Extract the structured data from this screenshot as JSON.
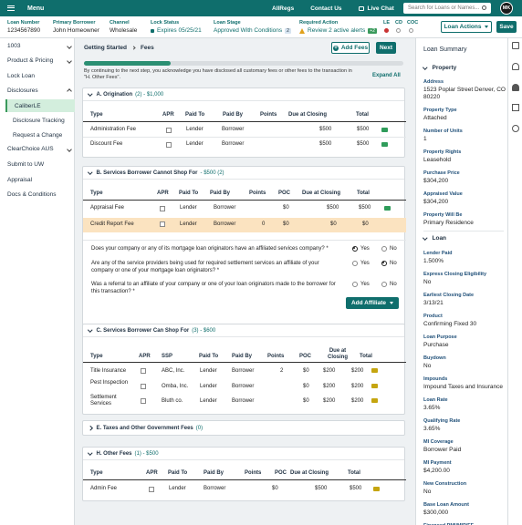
{
  "topbar": {
    "menu": "Menu",
    "links": [
      "AllRegs",
      "Contact Us"
    ],
    "chat": "Live Chat",
    "search_placeholder": "Search for Loans or Names...",
    "avatar": "MK"
  },
  "loanbar": {
    "loan_number_label": "Loan Number",
    "loan_number": "1234567890",
    "borrower_label": "Primary Borrower",
    "borrower": "John Homeowner",
    "channel_label": "Channel",
    "channel": "Wholesale",
    "lock_label": "Lock Status",
    "lock": "Expires 05/25/21",
    "stage_label": "Loan Stage",
    "stage": "Approved With Conditions",
    "stage_count": "2",
    "required_label": "Required Action",
    "required": "Review 2 active alerts",
    "required_badge": "+2",
    "le_label": "LE",
    "cd_label": "CD",
    "coc_label": "COC",
    "actions": "Loan Actions",
    "save": "Save"
  },
  "sidebar": {
    "items": [
      "1003",
      "Product & Pricing",
      "Lock Loan",
      "Disclosures"
    ],
    "subitems": [
      "CaliberLE",
      "Disclosure Tracking",
      "Request a Change"
    ],
    "items2": [
      "ClearChoice AUS",
      "Submit to UW",
      "Appraisal",
      "Docs & Conditions"
    ]
  },
  "main": {
    "breadcrumb": [
      "Getting Started",
      "Fees"
    ],
    "add_fees": "Add Fees",
    "next": "Next",
    "progress": 0.27,
    "notice": "By continuing to the next step, you acknowledge you have disclosed all customary fees or other fees to the transaction in \"H. Other Fees\".",
    "expand_all": "Expand All",
    "secA": {
      "title": "A. Origination",
      "count": "(2) - $1,000",
      "headers": [
        "Type",
        "APR",
        "Paid To",
        "Paid By",
        "Points",
        "Due at Closing",
        "Total"
      ],
      "rows": [
        [
          "Administration Fee",
          "Lender",
          "Borrower",
          "$500",
          "$500"
        ],
        [
          "Discount Fee",
          "Lender",
          "Borrower",
          "$500",
          "$500"
        ]
      ]
    },
    "secB": {
      "title": "B. Services Borrower Cannot Shop For",
      "count": "- $500 (2)",
      "headers": [
        "Type",
        "APR",
        "Paid To",
        "Paid By",
        "Points",
        "POC",
        "Due at Closing",
        "Total"
      ],
      "rows": [
        [
          "Appraisal Fee",
          "Lender",
          "Borrower",
          "",
          "$0",
          "$500",
          "$500"
        ],
        [
          "Credit Report Fee",
          "Lender",
          "Borrower",
          "0",
          "$0",
          "$0",
          "$0"
        ]
      ]
    },
    "questions": [
      "Does your company or any of its mortgage loan originators have an affiliated services company? *",
      "Are any of the service providers being used for required settlement services an affiliate of your company or one of your mortgage loan originators? *",
      "Was a referral to an affiliate of your company or one of your loan originators made to the borrower for this transaction? *"
    ],
    "yes": "Yes",
    "no": "No",
    "add_affiliate": "Add Affiliate",
    "secC": {
      "title": "C. Services Borrower Can Shop For",
      "count": "(3) - $600",
      "headers": [
        "Type",
        "APR",
        "SSP",
        "Paid To",
        "Paid By",
        "Points",
        "POC",
        "Due at Closing",
        "Total"
      ],
      "rows": [
        [
          "Title Insurance",
          "ABC, Inc.",
          "Lender",
          "Borrower",
          "2",
          "$0",
          "$200",
          "$200"
        ],
        [
          "Pest Inspection",
          "Omba, Inc.",
          "Lender",
          "Borrower",
          "",
          "$0",
          "$200",
          "$200"
        ],
        [
          "Settlement Services",
          "Bluth co.",
          "Lender",
          "Borrower",
          "",
          "$0",
          "$200",
          "$200"
        ]
      ]
    },
    "secE": {
      "title": "E. Taxes and Other Government Fees",
      "count": "(0)"
    },
    "secH": {
      "title": "H. Other Fees",
      "count": "(1) - $500",
      "headers": [
        "Type",
        "APR",
        "Paid To",
        "Paid By",
        "Points",
        "POC",
        "Due at Closing",
        "Total"
      ],
      "rows": [
        [
          "Admin Fee",
          "Lender",
          "Borrower",
          "",
          "$0",
          "$500",
          "$500"
        ]
      ]
    }
  },
  "summary": {
    "title": "Loan Summary",
    "property_title": "Property",
    "property": [
      [
        "Address",
        "1523 Poplar Street Denver, CO 80220"
      ],
      [
        "Property Type",
        "Attached"
      ],
      [
        "Number of Units",
        "1"
      ],
      [
        "Property Rights",
        "Leasehold"
      ],
      [
        "Purchase Price",
        "$304,200"
      ],
      [
        "Appraised Value",
        "$304,200"
      ],
      [
        "Property Will Be",
        "Primary Residence"
      ]
    ],
    "loan_title": "Loan",
    "loan": [
      [
        "Lender Paid",
        "1.500%"
      ],
      [
        "Express Closing Eligibility",
        "No"
      ],
      [
        "Earliest Closing Date",
        "3/13/21"
      ],
      [
        "Product",
        "Confirming Fixed 30"
      ],
      [
        "Loan Purpose",
        "Purchase"
      ],
      [
        "Buydown",
        "No"
      ],
      [
        "Impounds",
        "Impound Taxes and Insurance"
      ],
      [
        "Loan Rate",
        "3.65%"
      ],
      [
        "Qualifying Rate",
        "3.65%"
      ],
      [
        "MI Coverage",
        "Borrower Paid"
      ],
      [
        "MI Payment",
        "$4,200.00"
      ],
      [
        "New Construction",
        "No"
      ],
      [
        "Base Loan Amount",
        "$300,000"
      ],
      [
        "Financed PMI/MIP/FF",
        ""
      ]
    ]
  }
}
